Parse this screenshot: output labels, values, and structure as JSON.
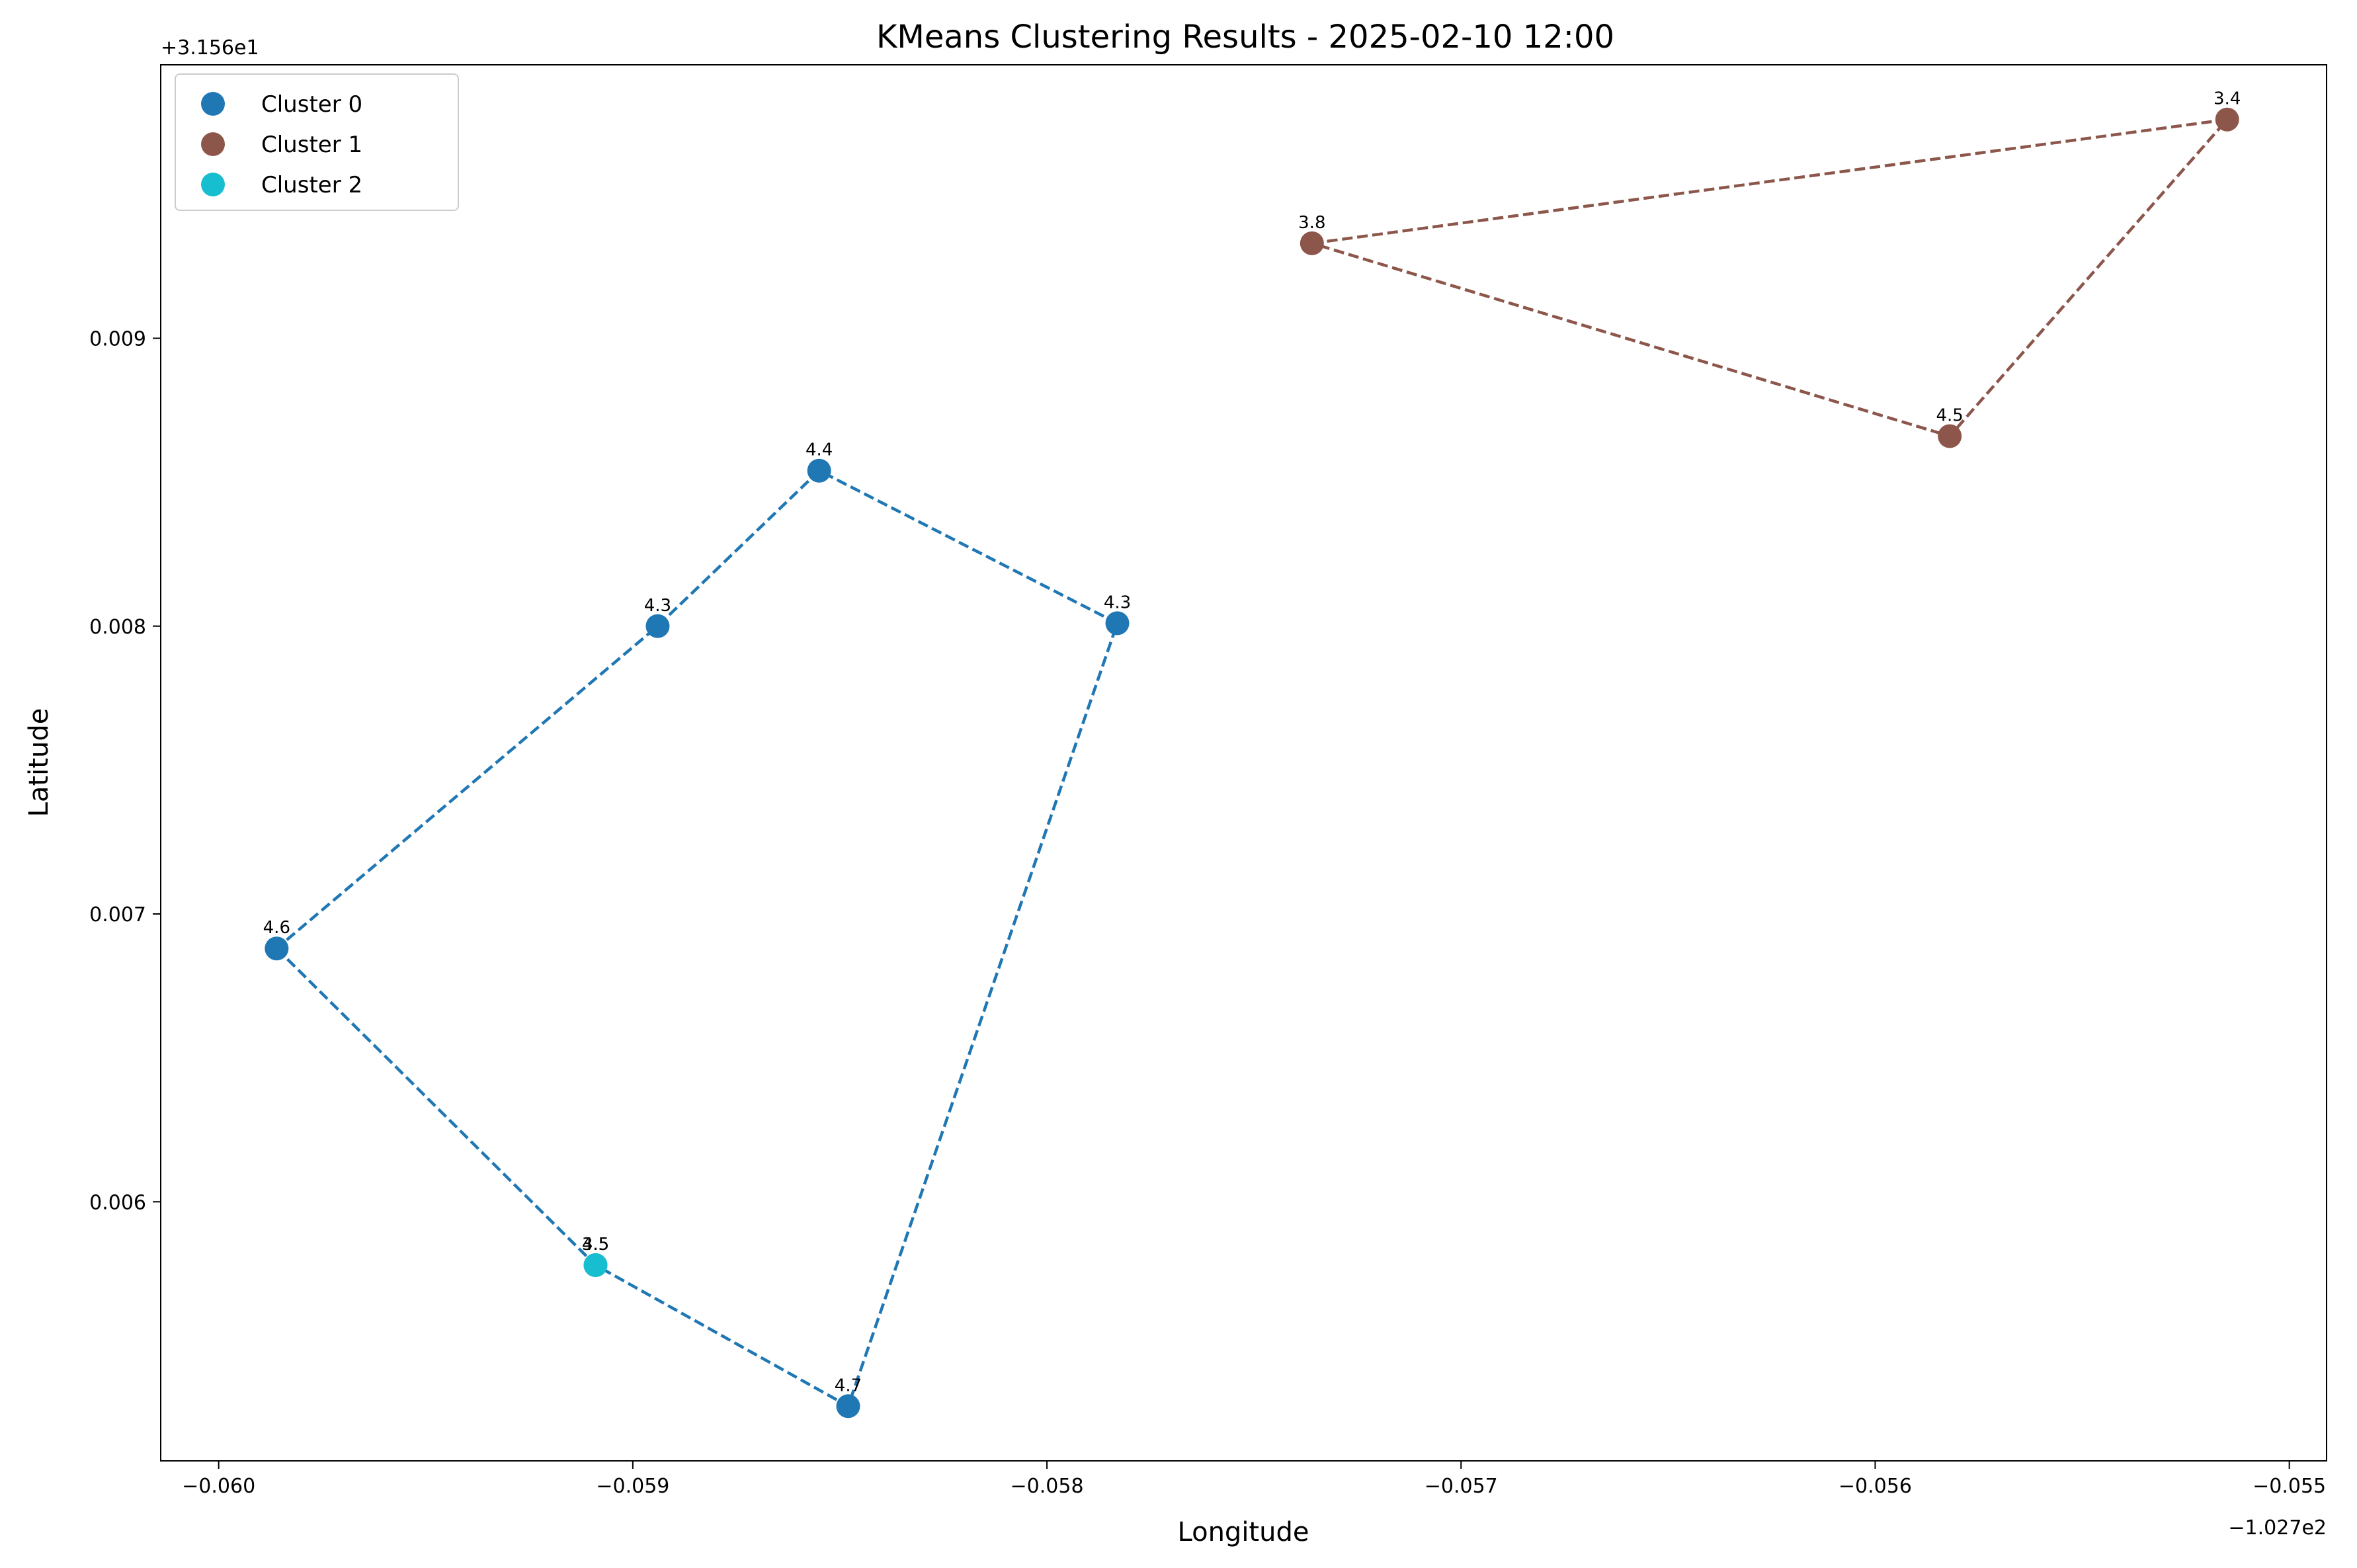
{
  "chart_data": {
    "type": "scatter",
    "title": "KMeans Clustering Results - 2025-02-10 12:00",
    "xlabel": "Longitude",
    "ylabel": "Latitude",
    "x_offset_label": "−1.027e2",
    "y_offset_label": "+3.156e1",
    "xlim": [
      -0.06014,
      -0.05491
    ],
    "ylim": [
      0.0051,
      0.00995
    ],
    "xticks": [
      -0.06,
      -0.059,
      -0.058,
      -0.057,
      -0.056,
      -0.055
    ],
    "xtick_labels": [
      "−0.060",
      "−0.059",
      "−0.058",
      "−0.057",
      "−0.056",
      "−0.055"
    ],
    "yticks": [
      0.006,
      0.007,
      0.008,
      0.009
    ],
    "ytick_labels": [
      "0.006",
      "0.007",
      "0.008",
      "0.009"
    ],
    "grid": false,
    "legend_position": "top-left",
    "series": [
      {
        "name": "Cluster 0",
        "color": "#1f77b4",
        "points": [
          {
            "x": -0.05986,
            "y": 0.00688,
            "label": "4.6"
          },
          {
            "x": -0.05909,
            "y": 0.00578,
            "label": "4.5"
          },
          {
            "x": -0.05848,
            "y": 0.00529,
            "label": "4.7"
          },
          {
            "x": -0.05783,
            "y": 0.00801,
            "label": "4.3"
          },
          {
            "x": -0.05855,
            "y": 0.00854,
            "label": "4.4"
          },
          {
            "x": -0.05894,
            "y": 0.008,
            "label": "4.3"
          }
        ],
        "outline": true
      },
      {
        "name": "Cluster 1",
        "color": "#8c564b",
        "points": [
          {
            "x": -0.05736,
            "y": 0.00933,
            "label": "3.8"
          },
          {
            "x": -0.05515,
            "y": 0.00976,
            "label": "3.4"
          },
          {
            "x": -0.05582,
            "y": 0.00866,
            "label": "4.5"
          }
        ],
        "outline": true
      },
      {
        "name": "Cluster 2",
        "color": "#17becf",
        "points": [
          {
            "x": -0.05909,
            "y": 0.00578,
            "label": "3.5"
          }
        ],
        "outline": false
      }
    ]
  }
}
